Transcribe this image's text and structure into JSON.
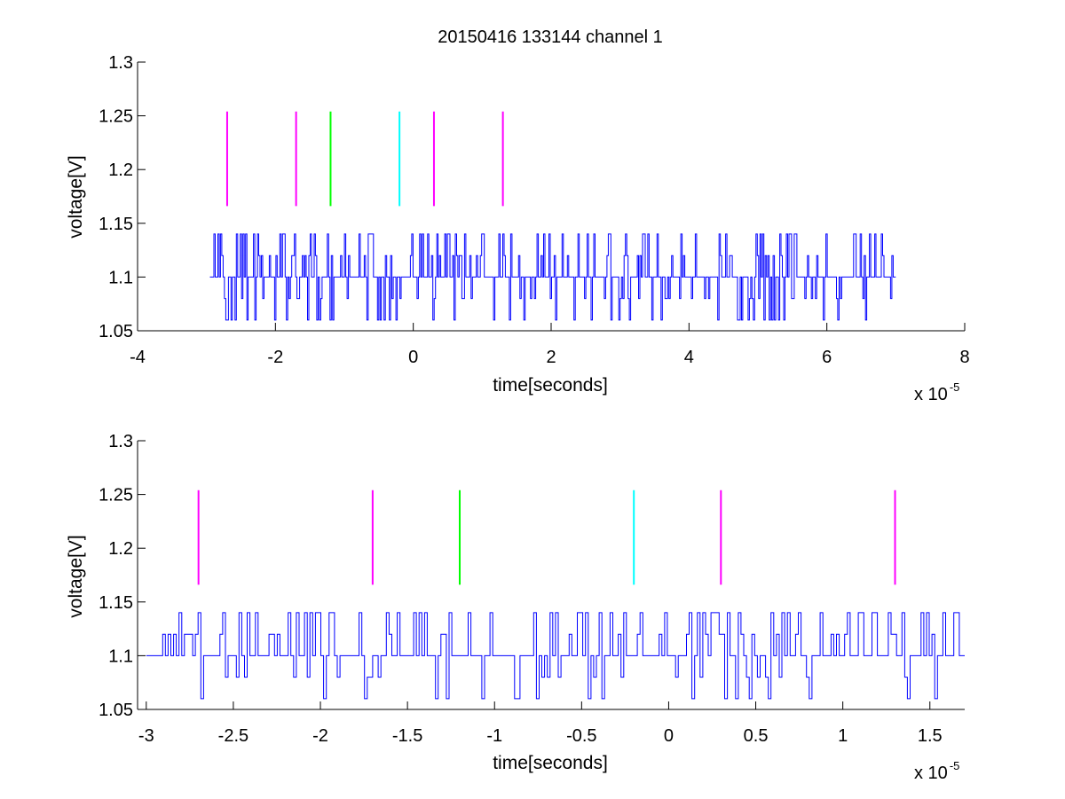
{
  "figure": {
    "title": "20150416 133144 channel 1"
  },
  "colors": {
    "signal": "#0000ff",
    "magenta": "#ff00ff",
    "green": "#00ff00",
    "cyan": "#00ffff",
    "axes": "#000000"
  },
  "chart_data": [
    {
      "type": "line",
      "title": "20150416 133144 channel 1",
      "xlabel": "time[seconds]",
      "ylabel": "voltage[V]",
      "x_exponent_label": "x 10",
      "x_exponent": "-5",
      "xlim": [
        -4,
        8
      ],
      "ylim": [
        1.05,
        1.3
      ],
      "xticks": [
        -4,
        -2,
        0,
        2,
        4,
        6,
        8
      ],
      "xtick_labels": [
        "-4",
        "-2",
        "0",
        "2",
        "4",
        "6",
        "8"
      ],
      "yticks": [
        1.05,
        1.1,
        1.15,
        1.2,
        1.25,
        1.3
      ],
      "ytick_labels": [
        "1.05",
        "1.1",
        "1.15",
        "1.2",
        "1.25",
        "1.3"
      ],
      "grid": false,
      "signal": {
        "x_start": -2.95,
        "x_end": 7.0,
        "levels": [
          1.06,
          1.08,
          1.1,
          1.12,
          1.14
        ],
        "baseline": 1.1,
        "samples": 520,
        "seed": 11
      },
      "markers": [
        {
          "x": -2.7,
          "y0": 1.166,
          "y1": 1.254,
          "color": "magenta"
        },
        {
          "x": -1.7,
          "y0": 1.166,
          "y1": 1.254,
          "color": "magenta"
        },
        {
          "x": -1.2,
          "y0": 1.166,
          "y1": 1.254,
          "color": "green"
        },
        {
          "x": -0.2,
          "y0": 1.166,
          "y1": 1.254,
          "color": "cyan"
        },
        {
          "x": 0.3,
          "y0": 1.166,
          "y1": 1.254,
          "color": "magenta"
        },
        {
          "x": 1.3,
          "y0": 1.166,
          "y1": 1.254,
          "color": "magenta"
        }
      ]
    },
    {
      "type": "line",
      "title": "",
      "xlabel": "time[seconds]",
      "ylabel": "voltage[V]",
      "x_exponent_label": "x 10",
      "x_exponent": "-5",
      "xlim": [
        -3.05,
        1.7
      ],
      "ylim": [
        1.05,
        1.3
      ],
      "xticks": [
        -3,
        -2.5,
        -2,
        -1.5,
        -1,
        -0.5,
        0,
        0.5,
        1,
        1.5
      ],
      "xtick_labels": [
        "-3",
        "-2.5",
        "-2",
        "-1.5",
        "-1",
        "-0.5",
        "0",
        "0.5",
        "1",
        "1.5"
      ],
      "yticks": [
        1.05,
        1.1,
        1.15,
        1.2,
        1.25,
        1.3
      ],
      "ytick_labels": [
        "1.05",
        "1.1",
        "1.15",
        "1.2",
        "1.25",
        "1.3"
      ],
      "grid": false,
      "signal": {
        "x_start": -3.0,
        "x_end": 1.7,
        "levels": [
          1.06,
          1.08,
          1.1,
          1.12,
          1.14
        ],
        "baseline": 1.1,
        "samples": 300,
        "seed": 23
      },
      "markers": [
        {
          "x": -2.7,
          "y0": 1.166,
          "y1": 1.254,
          "color": "magenta"
        },
        {
          "x": -1.7,
          "y0": 1.166,
          "y1": 1.254,
          "color": "magenta"
        },
        {
          "x": -1.2,
          "y0": 1.166,
          "y1": 1.254,
          "color": "green"
        },
        {
          "x": -0.2,
          "y0": 1.166,
          "y1": 1.254,
          "color": "cyan"
        },
        {
          "x": 0.3,
          "y0": 1.166,
          "y1": 1.254,
          "color": "magenta"
        },
        {
          "x": 1.3,
          "y0": 1.166,
          "y1": 1.254,
          "color": "magenta"
        }
      ]
    }
  ]
}
